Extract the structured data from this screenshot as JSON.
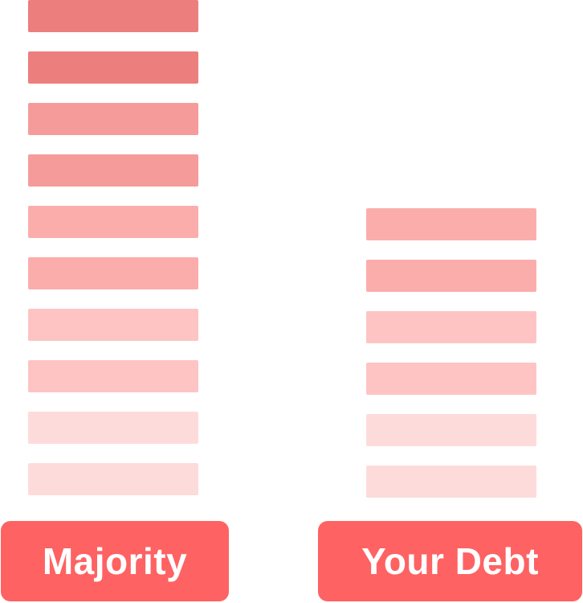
{
  "chart_data": {
    "type": "bar",
    "stacked_units": true,
    "categories": [
      "Majority",
      "Your Debt"
    ],
    "values": [
      10,
      6
    ],
    "ylim": [
      0,
      10
    ],
    "grid": false,
    "legend": "none"
  },
  "colors": {
    "label_background": "#fe6262",
    "label_text": "#ffffff",
    "segment_shades_top_to_bottom": [
      "#ec7e7d",
      "#ec7e7d",
      "#f59c9b",
      "#f59c9b",
      "#fbadac",
      "#fbadac",
      "#fdc4c3",
      "#fdc4c3",
      "#fedbdb",
      "#fedbdb"
    ]
  }
}
